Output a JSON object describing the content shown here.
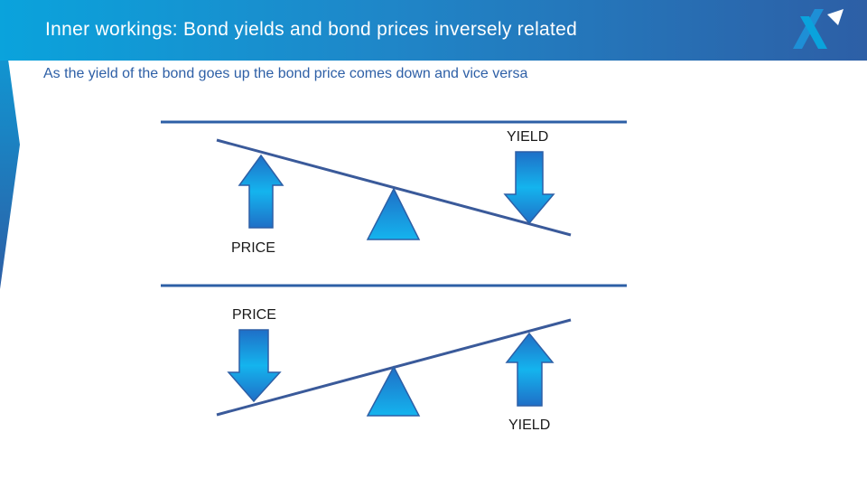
{
  "header": {
    "title": "Inner workings: Bond yields and bond prices inversely related"
  },
  "subtitle": "As the yield of the bond goes up the bond price comes down and vice versa",
  "diagram_top": {
    "price_label": "PRICE",
    "yield_label": "YIELD"
  },
  "diagram_bottom": {
    "price_label": "PRICE",
    "yield_label": "YIELD"
  },
  "colors": {
    "accent_dark": "#2d5fa6",
    "accent_light": "#0aa3dc",
    "line": "#3a5a9a"
  },
  "icons": {
    "logo": "x-logo-icon",
    "up_arrow": "up-arrow-icon",
    "down_arrow": "down-arrow-icon",
    "fulcrum": "triangle-fulcrum-icon"
  }
}
